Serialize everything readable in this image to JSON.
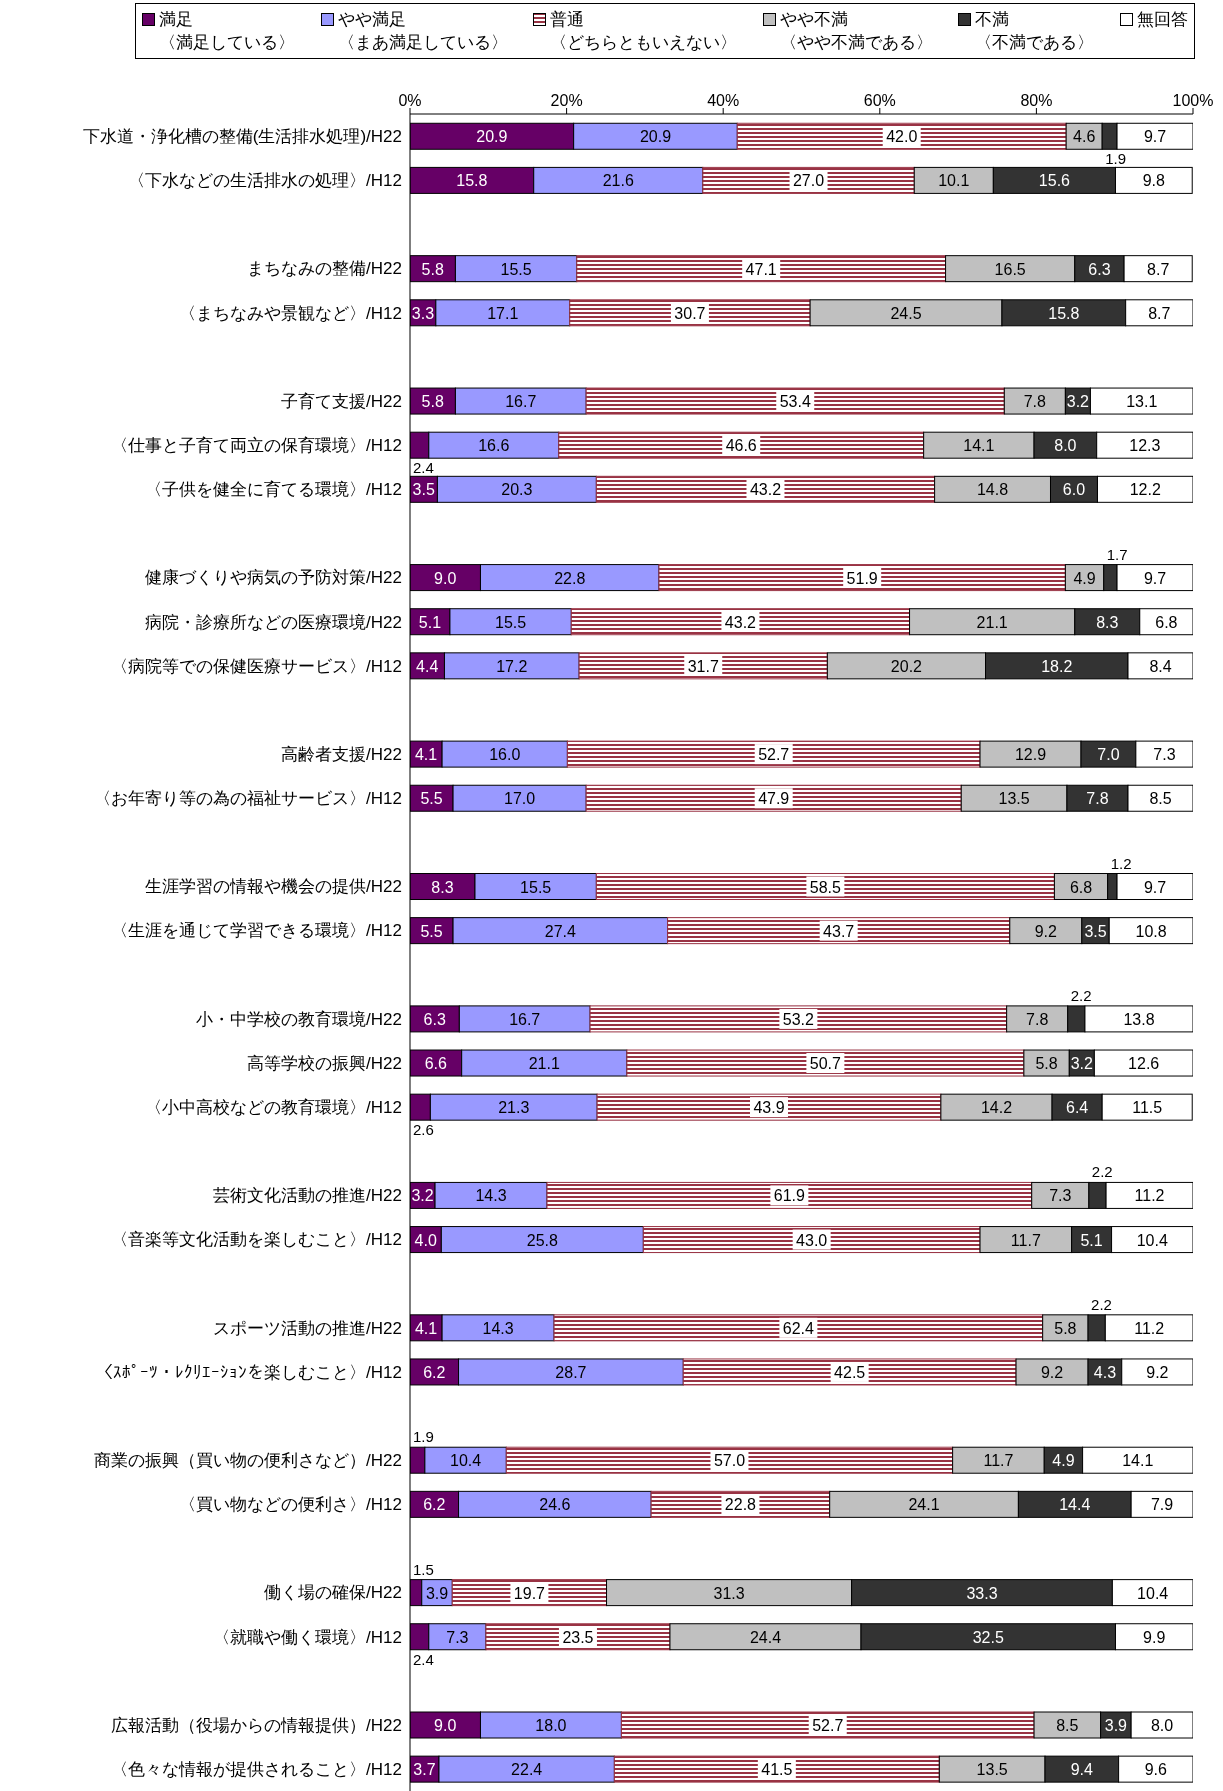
{
  "chart_data": {
    "type": "bar",
    "orientation": "horizontal",
    "stacked": true,
    "legend": "top",
    "categories": [
      "下水道・浄化槽の整備(生活排水処理)/H22",
      "〈下水などの生活排水の処理〉/H12",
      null,
      "まちなみの整備/H22",
      "〈まちなみや景観など〉/H12",
      null,
      "子育て支援/H22",
      "〈仕事と子育て両立の保育環境〉/H12",
      "〈子供を健全に育てる環境〉/H12",
      null,
      "健康づくりや病気の予防対策/H22",
      "病院・診療所などの医療環境/H22",
      "〈病院等での保健医療サービス〉/H12",
      null,
      "高齢者支援/H22",
      "〈お年寄り等の為の福祉サービス〉/H12",
      null,
      "生涯学習の情報や機会の提供/H22",
      "〈生涯を通じて学習できる環境〉/H12",
      null,
      "小・中学校の教育環境/H22",
      "高等学校の振興/H22",
      "〈小中高校などの教育環境〉/H12",
      null,
      "芸術文化活動の推進/H22",
      "〈音楽等文化活動を楽しむこと〉/H12",
      null,
      "スポーツ活動の推進/H22",
      "〈ｽﾎﾟｰﾂ・ﾚｸﾘｴｰｼｮﾝを楽しむこと〉/H12",
      null,
      "商業の振興（買い物の便利さなど）/H22",
      "〈買い物などの便利さ〉/H12",
      null,
      "働く場の確保/H22",
      "〈就職や働く環境〉/H12",
      null,
      "広報活動（役場からの情報提供）/H22",
      "〈色々な情報が提供されること〉/H12"
    ],
    "xlim": [
      0,
      100
    ],
    "xticks": [
      {
        "value": 0,
        "label": "0%"
      },
      {
        "value": 20,
        "label": "20%"
      },
      {
        "value": 40,
        "label": "40%"
      },
      {
        "value": 60,
        "label": "60%"
      },
      {
        "value": 80,
        "label": "80%"
      },
      {
        "value": 100,
        "label": "100%"
      }
    ],
    "series": [
      {
        "name": "満足〈満足している〉",
        "color": "#660066",
        "values": [
          20.9,
          15.8,
          null,
          5.8,
          3.3,
          null,
          5.8,
          2.4,
          3.5,
          null,
          9.0,
          5.1,
          4.4,
          null,
          4.1,
          5.5,
          null,
          8.3,
          5.5,
          null,
          6.3,
          6.6,
          2.6,
          null,
          3.2,
          4.0,
          null,
          4.1,
          6.2,
          null,
          1.9,
          6.2,
          null,
          1.5,
          2.4,
          null,
          9.0,
          3.7
        ],
        "value_labels": [
          "20.9",
          "15.8",
          null,
          "5.8",
          "3.3",
          null,
          "5.8",
          "2.4",
          "3.5",
          null,
          "9.0",
          "5.1",
          "4.4",
          null,
          "4.1",
          "5.5",
          null,
          "8.3",
          "5.5",
          null,
          "6.3",
          "6.6",
          "2.6",
          null,
          "3.2",
          "4.0",
          null,
          "4.1",
          "6.2",
          null,
          "1.9",
          "6.2",
          null,
          "1.5",
          "2.4",
          null,
          "9.0",
          "3.7"
        ]
      },
      {
        "name": "やや満足〈まあ満足している〉",
        "color": "#9999ff",
        "values": [
          20.9,
          21.6,
          null,
          15.5,
          17.1,
          null,
          16.7,
          16.6,
          20.3,
          null,
          22.8,
          15.5,
          17.2,
          null,
          16.0,
          17.0,
          null,
          15.5,
          27.4,
          null,
          16.7,
          21.1,
          21.3,
          null,
          14.3,
          25.8,
          null,
          14.3,
          28.7,
          null,
          10.4,
          24.6,
          null,
          3.9,
          7.3,
          null,
          18.0,
          22.4
        ],
        "value_labels": [
          "20.9",
          "21.6",
          null,
          "15.5",
          "17.1",
          null,
          "16.7",
          "16.6",
          "20.3",
          null,
          "22.8",
          "15.5",
          "17.2",
          null,
          "16.0",
          "17.0",
          null,
          "15.5",
          "27.4",
          null,
          "16.7",
          "21.1",
          "21.3",
          null,
          "14.3",
          "25.8",
          null,
          "14.3",
          "28.7",
          null,
          "10.4",
          "24.6",
          null,
          "3.9",
          "7.3",
          null,
          "18.0",
          "22.4"
        ]
      },
      {
        "name": "普通〈どちらともいえない〉",
        "color": "#993344",
        "values": [
          42.0,
          27.0,
          null,
          47.1,
          30.7,
          null,
          53.4,
          46.6,
          43.2,
          null,
          51.9,
          43.2,
          31.7,
          null,
          52.7,
          47.9,
          null,
          58.5,
          43.7,
          null,
          53.2,
          50.7,
          43.9,
          null,
          61.9,
          43.0,
          null,
          62.4,
          42.5,
          null,
          57.0,
          22.8,
          null,
          19.7,
          23.5,
          null,
          52.7,
          41.5
        ],
        "value_labels": [
          "42.0",
          "27.0",
          null,
          "47.1",
          "30.7",
          null,
          "53.4",
          "46.6",
          "43.2",
          null,
          "51.9",
          "43.2",
          "31.7",
          null,
          "52.7",
          "47.9",
          null,
          "58.5",
          "43.7",
          null,
          "53.2",
          "50.7",
          "43.9",
          null,
          "61.9",
          "43.0",
          null,
          "62.4",
          "42.5",
          null,
          "57.0",
          "22.8",
          null,
          "19.7",
          "23.5",
          null,
          "52.7",
          "41.5"
        ]
      },
      {
        "name": "やや不満〈やや不満である〉",
        "color": "#c0c0c0",
        "values": [
          4.6,
          10.1,
          null,
          16.5,
          24.5,
          null,
          7.8,
          14.1,
          14.8,
          null,
          4.9,
          21.1,
          20.2,
          null,
          12.9,
          13.5,
          null,
          6.8,
          9.2,
          null,
          7.8,
          5.8,
          14.2,
          null,
          7.3,
          11.7,
          null,
          5.8,
          9.2,
          null,
          11.7,
          24.1,
          null,
          31.3,
          24.4,
          null,
          8.5,
          13.5
        ],
        "value_labels": [
          "4.6",
          "10.1",
          null,
          "16.5",
          "24.5",
          null,
          "7.8",
          "14.1",
          "14.8",
          null,
          "4.9",
          "21.1",
          "20.2",
          null,
          "12.9",
          "13.5",
          null,
          "6.8",
          "9.2",
          null,
          "7.8",
          "5.8",
          "14.2",
          null,
          "7.3",
          "11.7",
          null,
          "5.8",
          "9.2",
          null,
          "11.7",
          "24.1",
          null,
          "31.3",
          "24.4",
          null,
          "8.5",
          "13.5"
        ]
      },
      {
        "name": "不満〈不満である〉",
        "color": "#333333",
        "values": [
          1.9,
          15.6,
          null,
          6.3,
          15.8,
          null,
          3.2,
          8.0,
          6.0,
          null,
          1.7,
          8.3,
          18.2,
          null,
          7.0,
          7.8,
          null,
          1.2,
          3.5,
          null,
          2.2,
          3.2,
          6.4,
          null,
          2.2,
          5.1,
          null,
          2.2,
          4.3,
          null,
          4.9,
          14.4,
          null,
          33.3,
          32.5,
          null,
          3.9,
          9.4
        ],
        "value_labels": [
          "1.9",
          "15.6",
          null,
          "6.3",
          "15.8",
          null,
          "3.2",
          "8.0",
          "6.0",
          null,
          "1.7",
          "8.3",
          "18.2",
          null,
          "7.0",
          "7.8",
          null,
          "1.2",
          "3.5",
          null,
          "2.2",
          "3.2",
          "6.4",
          null,
          "2.2",
          "5.1",
          null,
          "2.2",
          "4.3",
          null,
          "4.9",
          "14.4",
          null,
          "33.3",
          "32.5",
          null,
          "3.9",
          "9.4"
        ]
      },
      {
        "name": "無回答",
        "color": "#ffffff",
        "values": [
          9.7,
          9.8,
          null,
          8.7,
          8.7,
          null,
          13.1,
          12.3,
          12.2,
          null,
          9.7,
          6.8,
          8.4,
          null,
          7.3,
          8.5,
          null,
          9.7,
          10.8,
          null,
          13.8,
          12.6,
          11.5,
          null,
          11.2,
          10.4,
          null,
          11.2,
          9.2,
          null,
          14.1,
          7.9,
          null,
          10.4,
          9.9,
          null,
          8.0,
          9.6
        ],
        "value_labels": [
          "9.7",
          "9.8",
          null,
          "8.7",
          "8.7",
          null,
          "13.1",
          "12.3",
          "12.2",
          null,
          "9.7",
          "6.8",
          "8.4",
          null,
          "7.3",
          "8.5",
          null,
          "9.7",
          "10.8",
          null,
          "13.8",
          "12.6",
          "11.5",
          null,
          "11.2",
          "10.4",
          null,
          "11.2",
          "9.2",
          null,
          "14.1",
          "7.9",
          null,
          "10.4",
          "9.9",
          null,
          "8.0",
          "9.6"
        ]
      }
    ]
  }
}
